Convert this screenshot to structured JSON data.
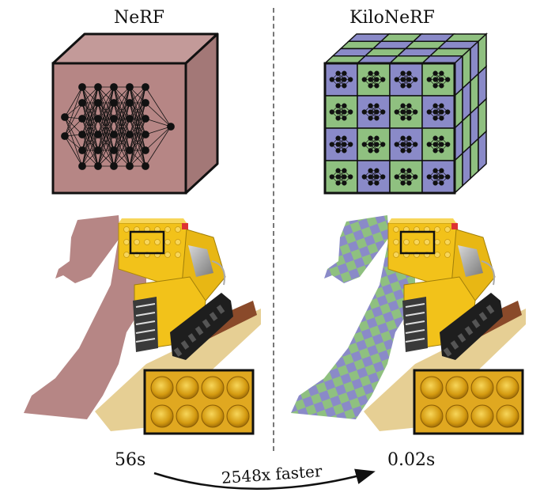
{
  "left": {
    "title": "NeRF",
    "time": "56s",
    "cube_color": "#b68685"
  },
  "right": {
    "title": "KiloNeRF",
    "time": "0.02s",
    "cell_colors": [
      "#8a8ac8",
      "#8fc080"
    ]
  },
  "comparison": {
    "speedup_label": "2548x faster"
  },
  "scene": {
    "object": "lego bulldozer",
    "base_color": "#e6cf94",
    "body_color": "#f2c21a"
  }
}
